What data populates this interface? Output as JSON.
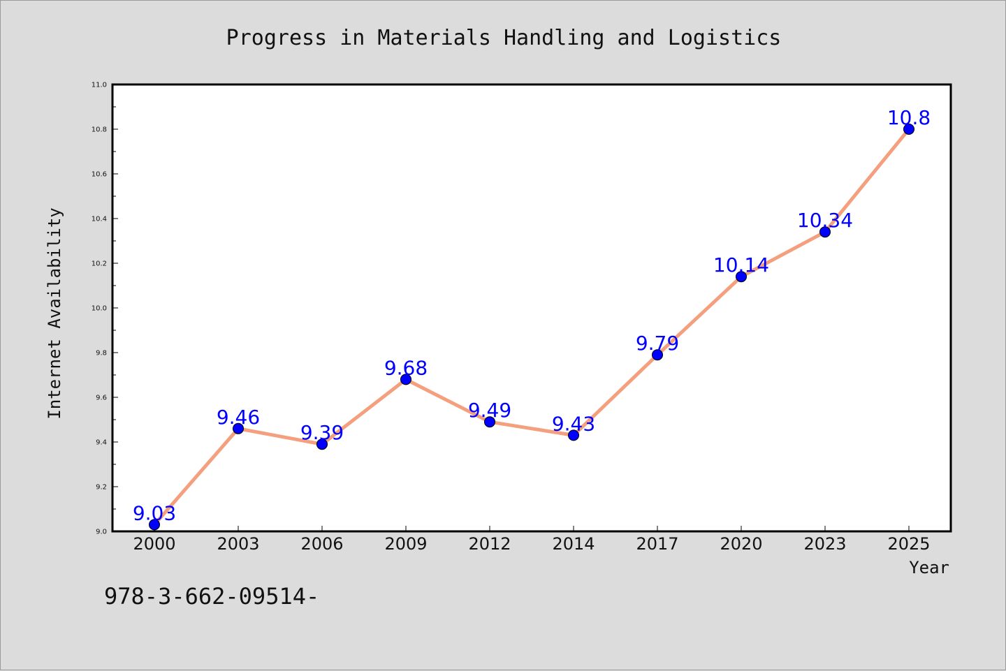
{
  "chart_data": {
    "type": "line",
    "title": "Progress in Materials Handling and Logistics",
    "xlabel": "Year",
    "ylabel": "Internet Availability",
    "categories": [
      "2000",
      "2003",
      "2006",
      "2009",
      "2012",
      "2014",
      "2017",
      "2020",
      "2023",
      "2025"
    ],
    "series": [
      {
        "values": [
          9.03,
          9.46,
          9.39,
          9.68,
          9.49,
          9.43,
          9.79,
          10.14,
          10.34,
          10.8
        ],
        "labels": [
          "9.03",
          "9.46",
          "9.39",
          "9.68",
          "9.49",
          "9.43",
          "9.79",
          "10.14",
          "10.34",
          "10.8"
        ],
        "line_color": "#f4a07e",
        "marker_color": "#0000ff"
      }
    ],
    "ylim": [
      9.0,
      11.0
    ],
    "yticks": [
      "9.0",
      "9.2",
      "9.4",
      "9.6",
      "9.8",
      "10.0",
      "10.2",
      "10.4",
      "10.6",
      "10.8",
      "11.0"
    ],
    "grid": false,
    "legend": "none",
    "data_label_color": "#0000ff"
  },
  "footer_text": "978-3-662-09514-",
  "colors": {
    "background": "#dcdcdc",
    "plot_background": "#ffffff"
  }
}
